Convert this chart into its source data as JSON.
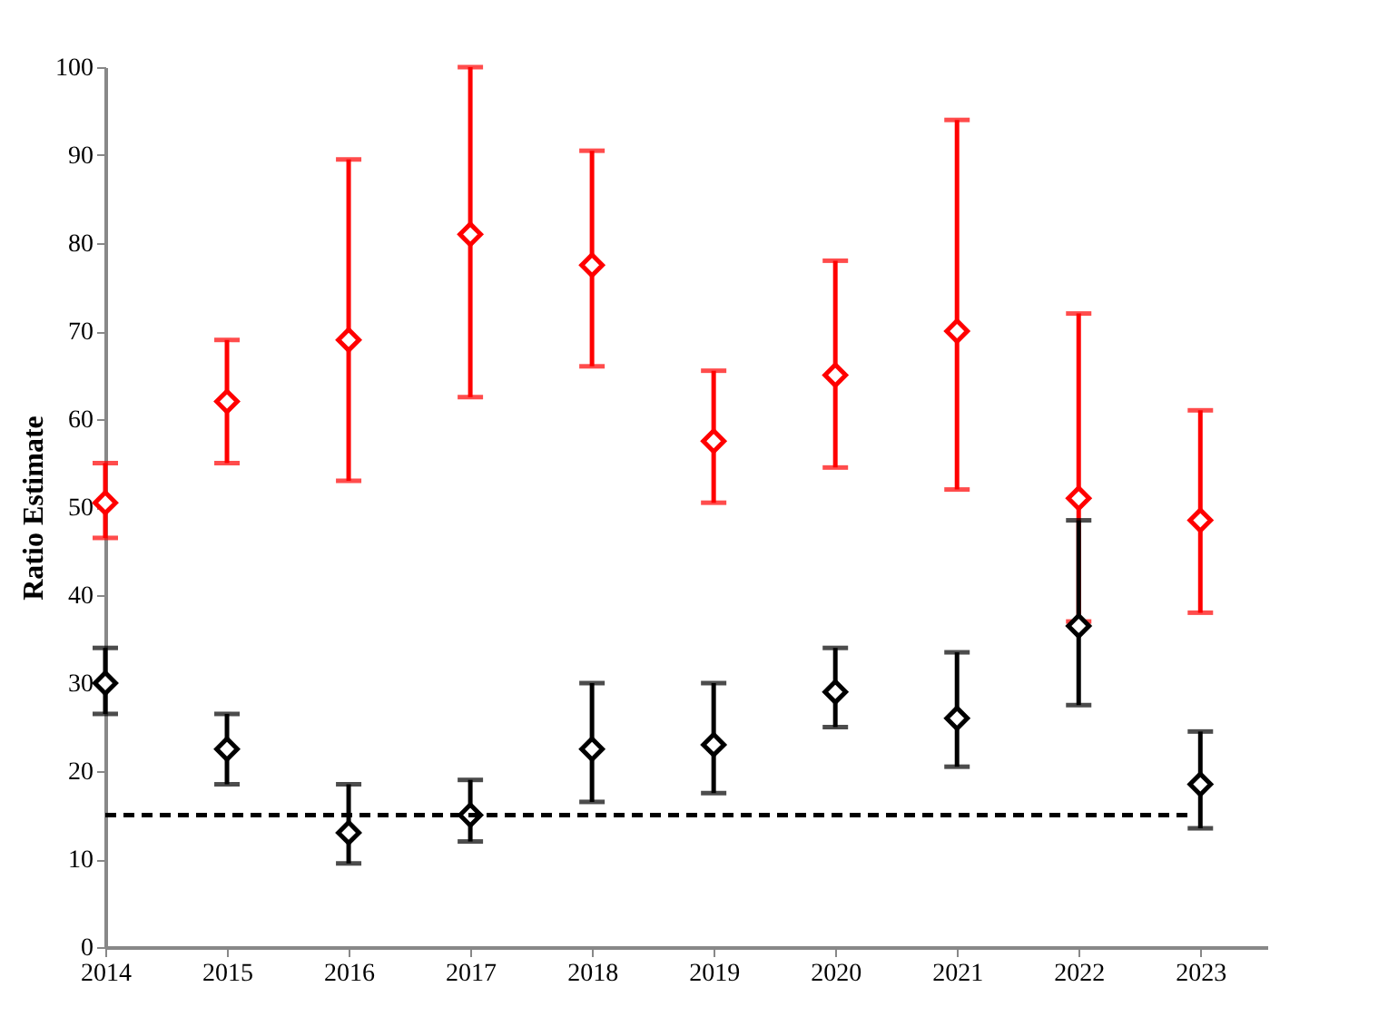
{
  "chart_data": {
    "type": "scatter",
    "ylabel": "Ratio Estimate",
    "categories": [
      "2014",
      "2015",
      "2016",
      "2017",
      "2018",
      "2019",
      "2020",
      "2021",
      "2022",
      "2023"
    ],
    "ylim": [
      0,
      100
    ],
    "yticks": [
      0,
      10,
      20,
      30,
      40,
      50,
      60,
      70,
      80,
      90,
      100
    ],
    "series": [
      {
        "color": "#ff0000",
        "values": [
          50.5,
          62,
          69,
          81,
          77.5,
          57.5,
          65,
          70,
          51,
          48.5
        ],
        "errors": [
          [
            46.5,
            55
          ],
          [
            55,
            69
          ],
          [
            53,
            89.5
          ],
          [
            62.5,
            100
          ],
          [
            66,
            90.5
          ],
          [
            50.5,
            65.5
          ],
          [
            54.5,
            78
          ],
          [
            52,
            94
          ],
          [
            37,
            72
          ],
          [
            38,
            61
          ]
        ]
      },
      {
        "color": "#000000",
        "values": [
          30,
          22.5,
          13,
          15,
          22.5,
          23,
          29,
          26,
          36.5,
          18.5
        ],
        "errors": [
          [
            26.5,
            34
          ],
          [
            18.5,
            26.5
          ],
          [
            9.5,
            18.5
          ],
          [
            12,
            19
          ],
          [
            16.5,
            30
          ],
          [
            17.5,
            30
          ],
          [
            25,
            34
          ],
          [
            20.5,
            33.5
          ],
          [
            27.5,
            48.5
          ],
          [
            13.5,
            24.5
          ]
        ]
      }
    ],
    "ref_lines": [
      {
        "axis": "y",
        "value": 15,
        "color": "#000000",
        "line_style": "dashed"
      }
    ],
    "marker": "diamond",
    "grid": false
  }
}
